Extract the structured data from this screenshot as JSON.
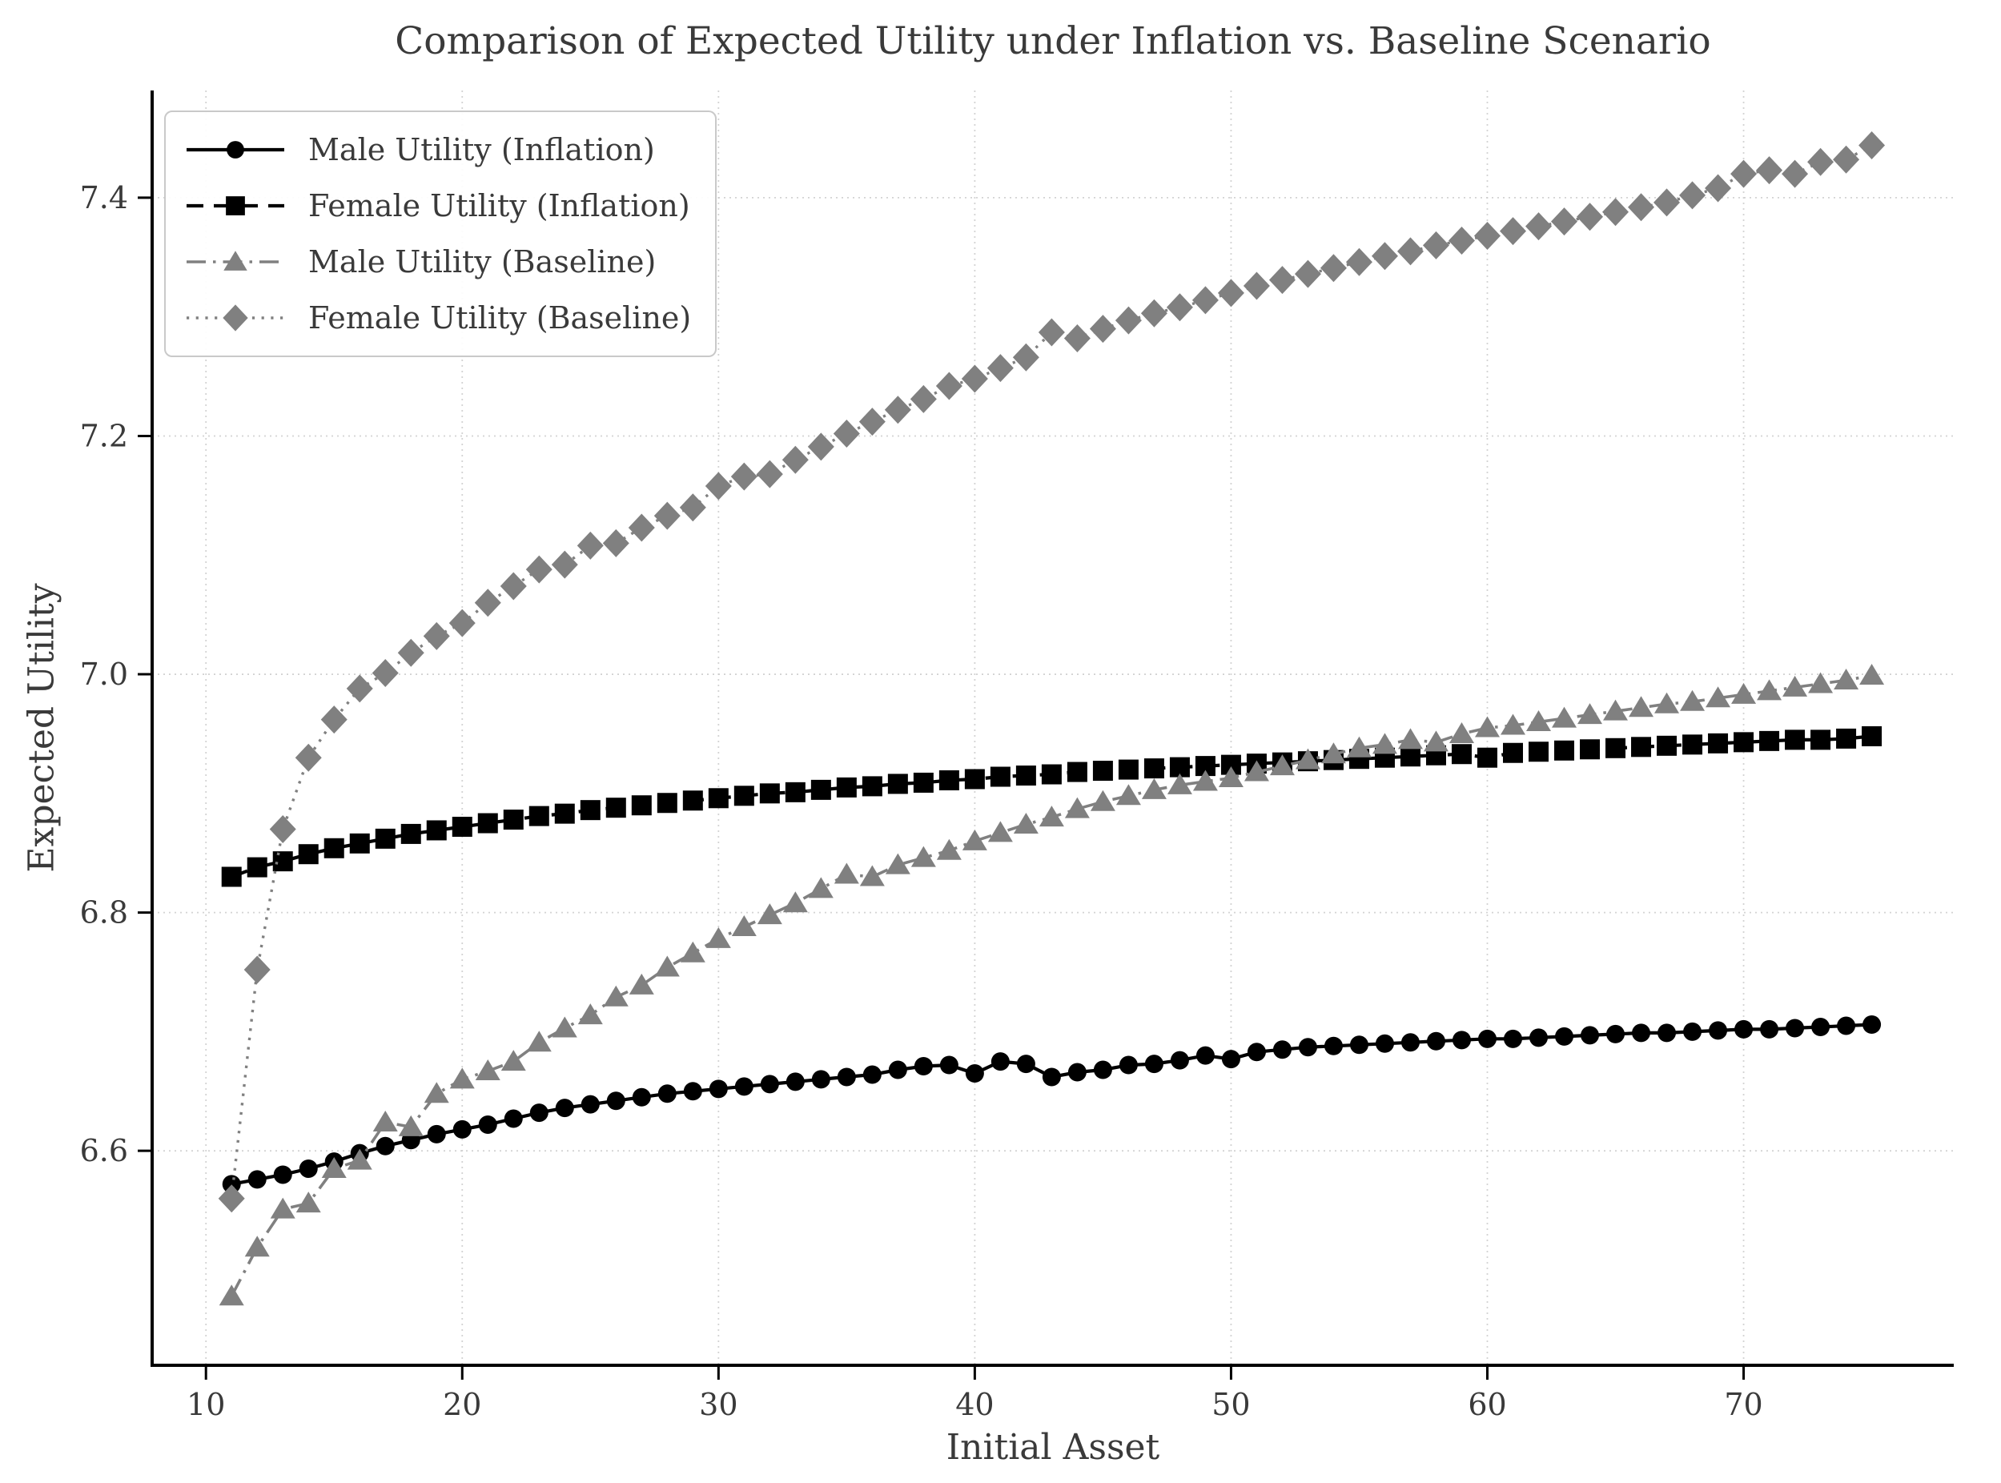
{
  "figure": {
    "background": "#ffffff",
    "text_color": "#3a3a3a",
    "grid_color": "#cccccc",
    "spine_color": "#000000"
  },
  "chart_data": {
    "type": "line",
    "title": "Comparison of Expected Utility under Inflation vs. Baseline Scenario",
    "xlabel": "Initial Asset",
    "ylabel": "Expected Utility",
    "legend_position": "upper left",
    "grid": true,
    "x_ticks": [
      10,
      20,
      30,
      40,
      50,
      60,
      70
    ],
    "y_ticks": [
      6.6,
      6.8,
      7.0,
      7.2,
      7.4
    ],
    "xlim": [
      7.9,
      78.2
    ],
    "ylim": [
      6.42,
      7.49
    ],
    "x": [
      11,
      12,
      13,
      14,
      15,
      16,
      17,
      18,
      19,
      20,
      21,
      22,
      23,
      24,
      25,
      26,
      27,
      28,
      29,
      30,
      31,
      32,
      33,
      34,
      35,
      36,
      37,
      38,
      39,
      40,
      41,
      42,
      43,
      44,
      45,
      46,
      47,
      48,
      49,
      50,
      51,
      52,
      53,
      54,
      55,
      56,
      57,
      58,
      59,
      60,
      61,
      62,
      63,
      64,
      65,
      66,
      67,
      68,
      69,
      70,
      71,
      72,
      73,
      74,
      75
    ],
    "series": [
      {
        "name": "Male Utility (Inflation)",
        "color": "#000000",
        "line_style": "solid",
        "marker": "circle",
        "values": [
          6.572,
          6.576,
          6.58,
          6.585,
          6.591,
          6.598,
          6.604,
          6.609,
          6.614,
          6.618,
          6.622,
          6.627,
          6.632,
          6.636,
          6.639,
          6.642,
          6.645,
          6.648,
          6.65,
          6.652,
          6.654,
          6.656,
          6.658,
          6.66,
          6.662,
          6.664,
          6.668,
          6.671,
          6.672,
          6.665,
          6.675,
          6.673,
          6.662,
          6.666,
          6.668,
          6.672,
          6.673,
          6.676,
          6.68,
          6.677,
          6.683,
          6.685,
          6.687,
          6.688,
          6.689,
          6.69,
          6.691,
          6.692,
          6.693,
          6.694,
          6.694,
          6.695,
          6.696,
          6.697,
          6.698,
          6.699,
          6.699,
          6.7,
          6.701,
          6.702,
          6.702,
          6.703,
          6.704,
          6.705,
          6.706
        ]
      },
      {
        "name": "Female Utility (Inflation)",
        "color": "#000000",
        "line_style": "dashed",
        "marker": "square",
        "values": [
          6.83,
          6.838,
          6.843,
          6.849,
          6.854,
          6.858,
          6.862,
          6.866,
          6.869,
          6.872,
          6.875,
          6.878,
          6.881,
          6.883,
          6.886,
          6.888,
          6.89,
          6.892,
          6.894,
          6.896,
          6.898,
          6.9,
          6.901,
          6.903,
          6.905,
          6.906,
          6.908,
          6.909,
          6.911,
          6.912,
          6.914,
          6.915,
          6.916,
          6.918,
          6.919,
          6.92,
          6.921,
          6.922,
          6.923,
          6.924,
          6.925,
          6.926,
          6.927,
          6.928,
          6.929,
          6.93,
          6.931,
          6.932,
          6.933,
          6.93,
          6.934,
          6.935,
          6.936,
          6.937,
          6.938,
          6.939,
          6.94,
          6.941,
          6.942,
          6.943,
          6.944,
          6.945,
          6.945,
          6.946,
          6.948
        ]
      },
      {
        "name": "Male Utility (Baseline)",
        "color": "#808080",
        "line_style": "dashdot",
        "marker": "triangle",
        "values": [
          6.478,
          6.519,
          6.551,
          6.556,
          6.585,
          6.592,
          6.624,
          6.62,
          6.648,
          6.66,
          6.667,
          6.675,
          6.691,
          6.703,
          6.714,
          6.729,
          6.739,
          6.754,
          6.766,
          6.778,
          6.788,
          6.798,
          6.808,
          6.82,
          6.832,
          6.83,
          6.84,
          6.846,
          6.852,
          6.86,
          6.867,
          6.874,
          6.88,
          6.887,
          6.893,
          6.898,
          6.903,
          6.907,
          6.91,
          6.913,
          6.918,
          6.923,
          6.928,
          6.933,
          6.938,
          6.941,
          6.945,
          6.943,
          6.95,
          6.955,
          6.957,
          6.96,
          6.963,
          6.966,
          6.969,
          6.972,
          6.975,
          6.977,
          6.98,
          6.983,
          6.986,
          6.989,
          6.992,
          6.995,
          6.999
        ]
      },
      {
        "name": "Female Utility (Baseline)",
        "color": "#808080",
        "line_style": "dotted",
        "marker": "diamond",
        "values": [
          6.56,
          6.752,
          6.87,
          6.93,
          6.962,
          6.988,
          7.001,
          7.018,
          7.032,
          7.043,
          7.06,
          7.074,
          7.088,
          7.092,
          7.108,
          7.11,
          7.123,
          7.133,
          7.14,
          7.158,
          7.166,
          7.168,
          7.18,
          7.191,
          7.202,
          7.212,
          7.222,
          7.231,
          7.242,
          7.248,
          7.257,
          7.266,
          7.287,
          7.282,
          7.29,
          7.297,
          7.303,
          7.308,
          7.314,
          7.32,
          7.326,
          7.331,
          7.336,
          7.341,
          7.346,
          7.351,
          7.355,
          7.36,
          7.364,
          7.368,
          7.372,
          7.376,
          7.38,
          7.384,
          7.388,
          7.392,
          7.396,
          7.402,
          7.408,
          7.42,
          7.423,
          7.42,
          7.43,
          7.432,
          7.444
        ]
      }
    ]
  }
}
